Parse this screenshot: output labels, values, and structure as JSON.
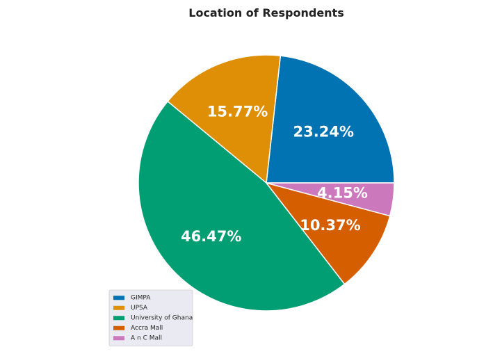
{
  "chart_data": {
    "type": "pie",
    "title": "Location of Respondents",
    "slices": [
      {
        "label": "GIMPA",
        "value": 23.24,
        "display": "23.24%",
        "color": "#0173b2"
      },
      {
        "label": "UPSA",
        "value": 15.77,
        "display": "15.77%",
        "color": "#de8f05"
      },
      {
        "label": "University of Ghana",
        "value": 46.47,
        "display": "46.47%",
        "color": "#029e73"
      },
      {
        "label": "Accra Mall",
        "value": 10.37,
        "display": "10.37%",
        "color": "#d55e00"
      },
      {
        "label": "A n C Mall",
        "value": 4.15,
        "display": "4.15%",
        "color": "#cc78bc"
      }
    ],
    "start_angle_deg": 0,
    "direction": "counterclockwise",
    "legend_position": "lower-left",
    "legend_background": "#eaeaf2"
  }
}
